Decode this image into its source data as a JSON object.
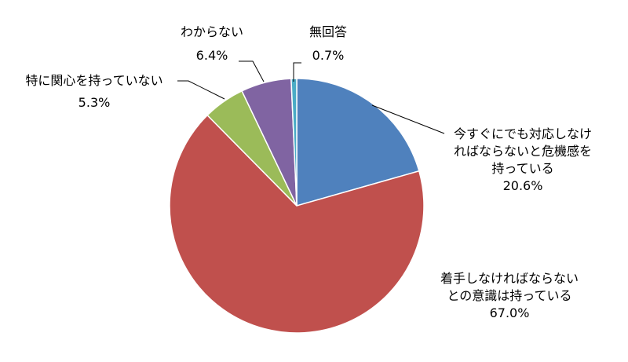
{
  "chart_data": {
    "type": "pie",
    "title": "",
    "start_angle_deg": 0,
    "direction": "clockwise",
    "slices": [
      {
        "label": "今すぐにでも対応しなければならないと危機感を持っている",
        "value": 20.6,
        "value_label": "20.6%",
        "color": "#4f81bd"
      },
      {
        "label": "着手しなければならないとの意識は持っている",
        "value": 67.0,
        "value_label": "67.0%",
        "color": "#c0504d"
      },
      {
        "label": "特に関心を持っていない",
        "value": 5.3,
        "value_label": "5.3%",
        "color": "#9bbb59"
      },
      {
        "label": "わからない",
        "value": 6.4,
        "value_label": "6.4%",
        "color": "#8064a2"
      },
      {
        "label": "無回答",
        "value": 0.7,
        "value_label": "0.7%",
        "color": "#4bacc6"
      }
    ]
  },
  "labels": {
    "urgent": {
      "line1": "今すぐにでも対応しなけ",
      "line2": "ればならないと危機感を",
      "line3": "持っている",
      "value": "20.6%"
    },
    "aware": {
      "line1": "着手しなければならない",
      "line2": "との意識は持っている",
      "value": "67.0%"
    },
    "no_interest": {
      "line1": "特に関心を持っていない",
      "value": "5.3%"
    },
    "dont_know": {
      "line1": "わからない",
      "value": "6.4%"
    },
    "no_answer": {
      "line1": "無回答",
      "value": "0.7%"
    }
  }
}
